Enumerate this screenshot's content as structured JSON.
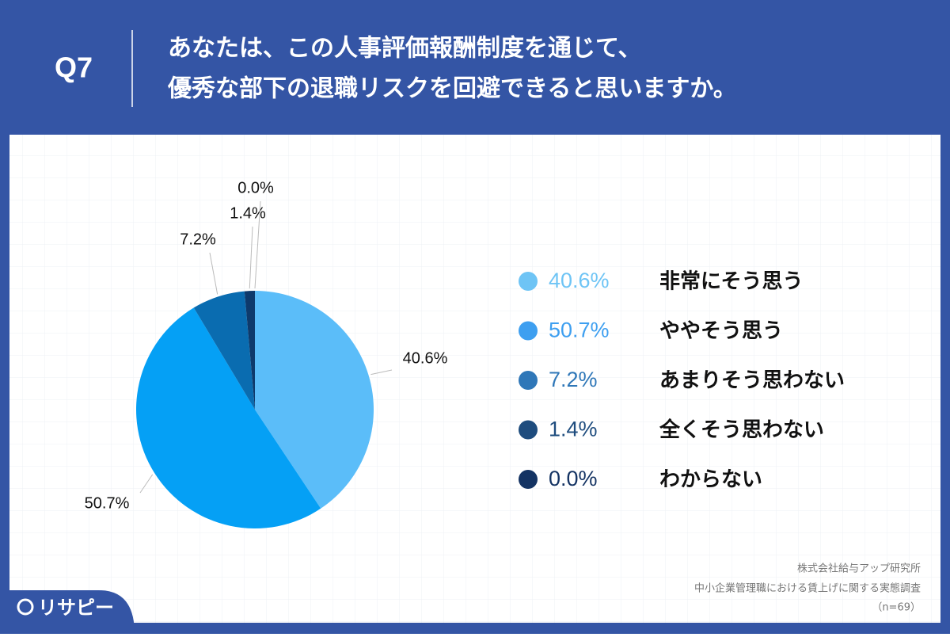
{
  "header": {
    "question": "Q7",
    "title_lines": [
      "あなたは、この人事評価報酬制度を通じて、",
      "優秀な部下の退職リスクを回避できると思いますか。"
    ]
  },
  "chart_data": {
    "type": "pie",
    "categories": [
      "非常にそう思う",
      "ややそう思う",
      "あまりそう思わない",
      "全くそう思わない",
      "わからない"
    ],
    "values": [
      40.6,
      50.7,
      7.2,
      1.4,
      0.0
    ],
    "value_labels": [
      "40.6%",
      "50.7%",
      "7.2%",
      "1.4%",
      "0.0%"
    ],
    "colors": [
      "#5bbdf9",
      "#05a0f5",
      "#0a6cb0",
      "#0e3a6c",
      "#0b2450"
    ],
    "legend_colors": [
      "#6ec4f5",
      "#3e9ff0",
      "#2f77b8",
      "#1e4c7e",
      "#143363"
    ]
  },
  "footer": {
    "source_lines": [
      "株式会社給与アップ研究所",
      "中小企業管理職における賃上げに関する実態調査",
      "（n=69）"
    ],
    "logo": "リサピー"
  }
}
